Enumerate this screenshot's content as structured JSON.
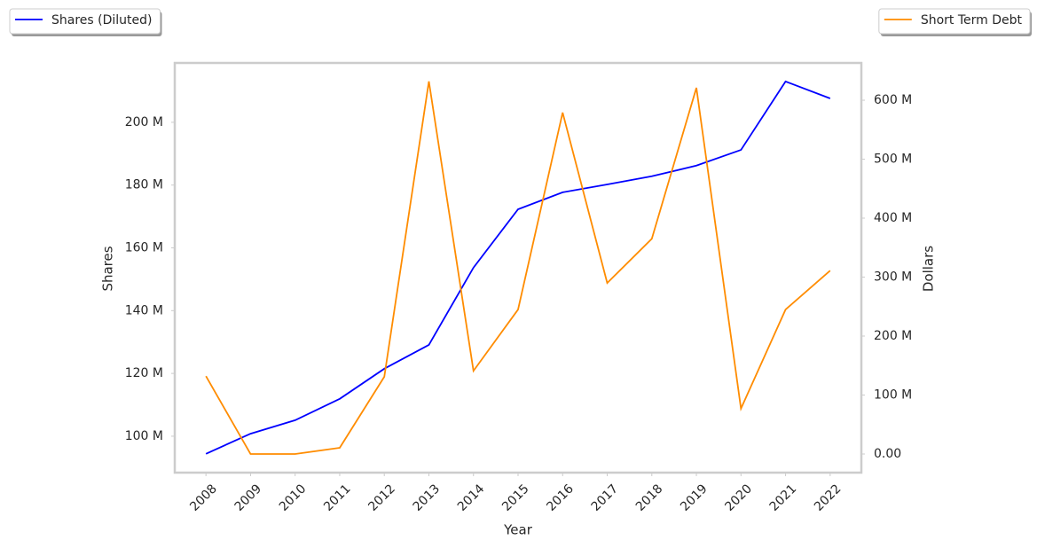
{
  "chart_data": {
    "type": "line",
    "x": [
      2008,
      2009,
      2010,
      2011,
      2012,
      2013,
      2014,
      2015,
      2016,
      2017,
      2018,
      2019,
      2020,
      2021,
      2022
    ],
    "xlim": [
      2007.3,
      2022.7
    ],
    "xticks": [
      2008,
      2009,
      2010,
      2011,
      2012,
      2013,
      2014,
      2015,
      2016,
      2017,
      2018,
      2019,
      2020,
      2021,
      2022
    ],
    "x_label": "Year",
    "y_label": "Shares",
    "y2_label": "Dollars",
    "ylim": [
      88.4,
      218.9
    ],
    "yticks": [
      {
        "value": 100,
        "label": "100 M"
      },
      {
        "value": 120,
        "label": "120 M"
      },
      {
        "value": 140,
        "label": "140 M"
      },
      {
        "value": 160,
        "label": "160 M"
      },
      {
        "value": 180,
        "label": "180 M"
      },
      {
        "value": 200,
        "label": "200 M"
      }
    ],
    "y2lim": [
      -31.6,
      663.2
    ],
    "y2ticks": [
      {
        "value": 0,
        "label": "0.00"
      },
      {
        "value": 100,
        "label": "100 M"
      },
      {
        "value": 200,
        "label": "200 M"
      },
      {
        "value": 300,
        "label": "300 M"
      },
      {
        "value": 400,
        "label": "400 M"
      },
      {
        "value": 500,
        "label": "500 M"
      },
      {
        "value": 600,
        "label": "600 M"
      }
    ],
    "grid": false,
    "series": [
      {
        "name": "Shares (Diluted)",
        "color": "#0000ff",
        "legend": "upper left",
        "values": [
          94.4,
          100.8,
          105.1,
          111.9,
          121.5,
          129.1,
          153.7,
          172.3,
          177.7,
          180.2,
          182.8,
          186.2,
          191.2,
          213.0,
          207.6
        ]
      },
      {
        "name": "Short Term Debt",
        "color": "#ff8c00",
        "axis": "y2",
        "legend": "upper right",
        "values": [
          132,
          0,
          0,
          10.5,
          131,
          632,
          141,
          245,
          579,
          290,
          365,
          621,
          77,
          245,
          311
        ]
      }
    ]
  }
}
